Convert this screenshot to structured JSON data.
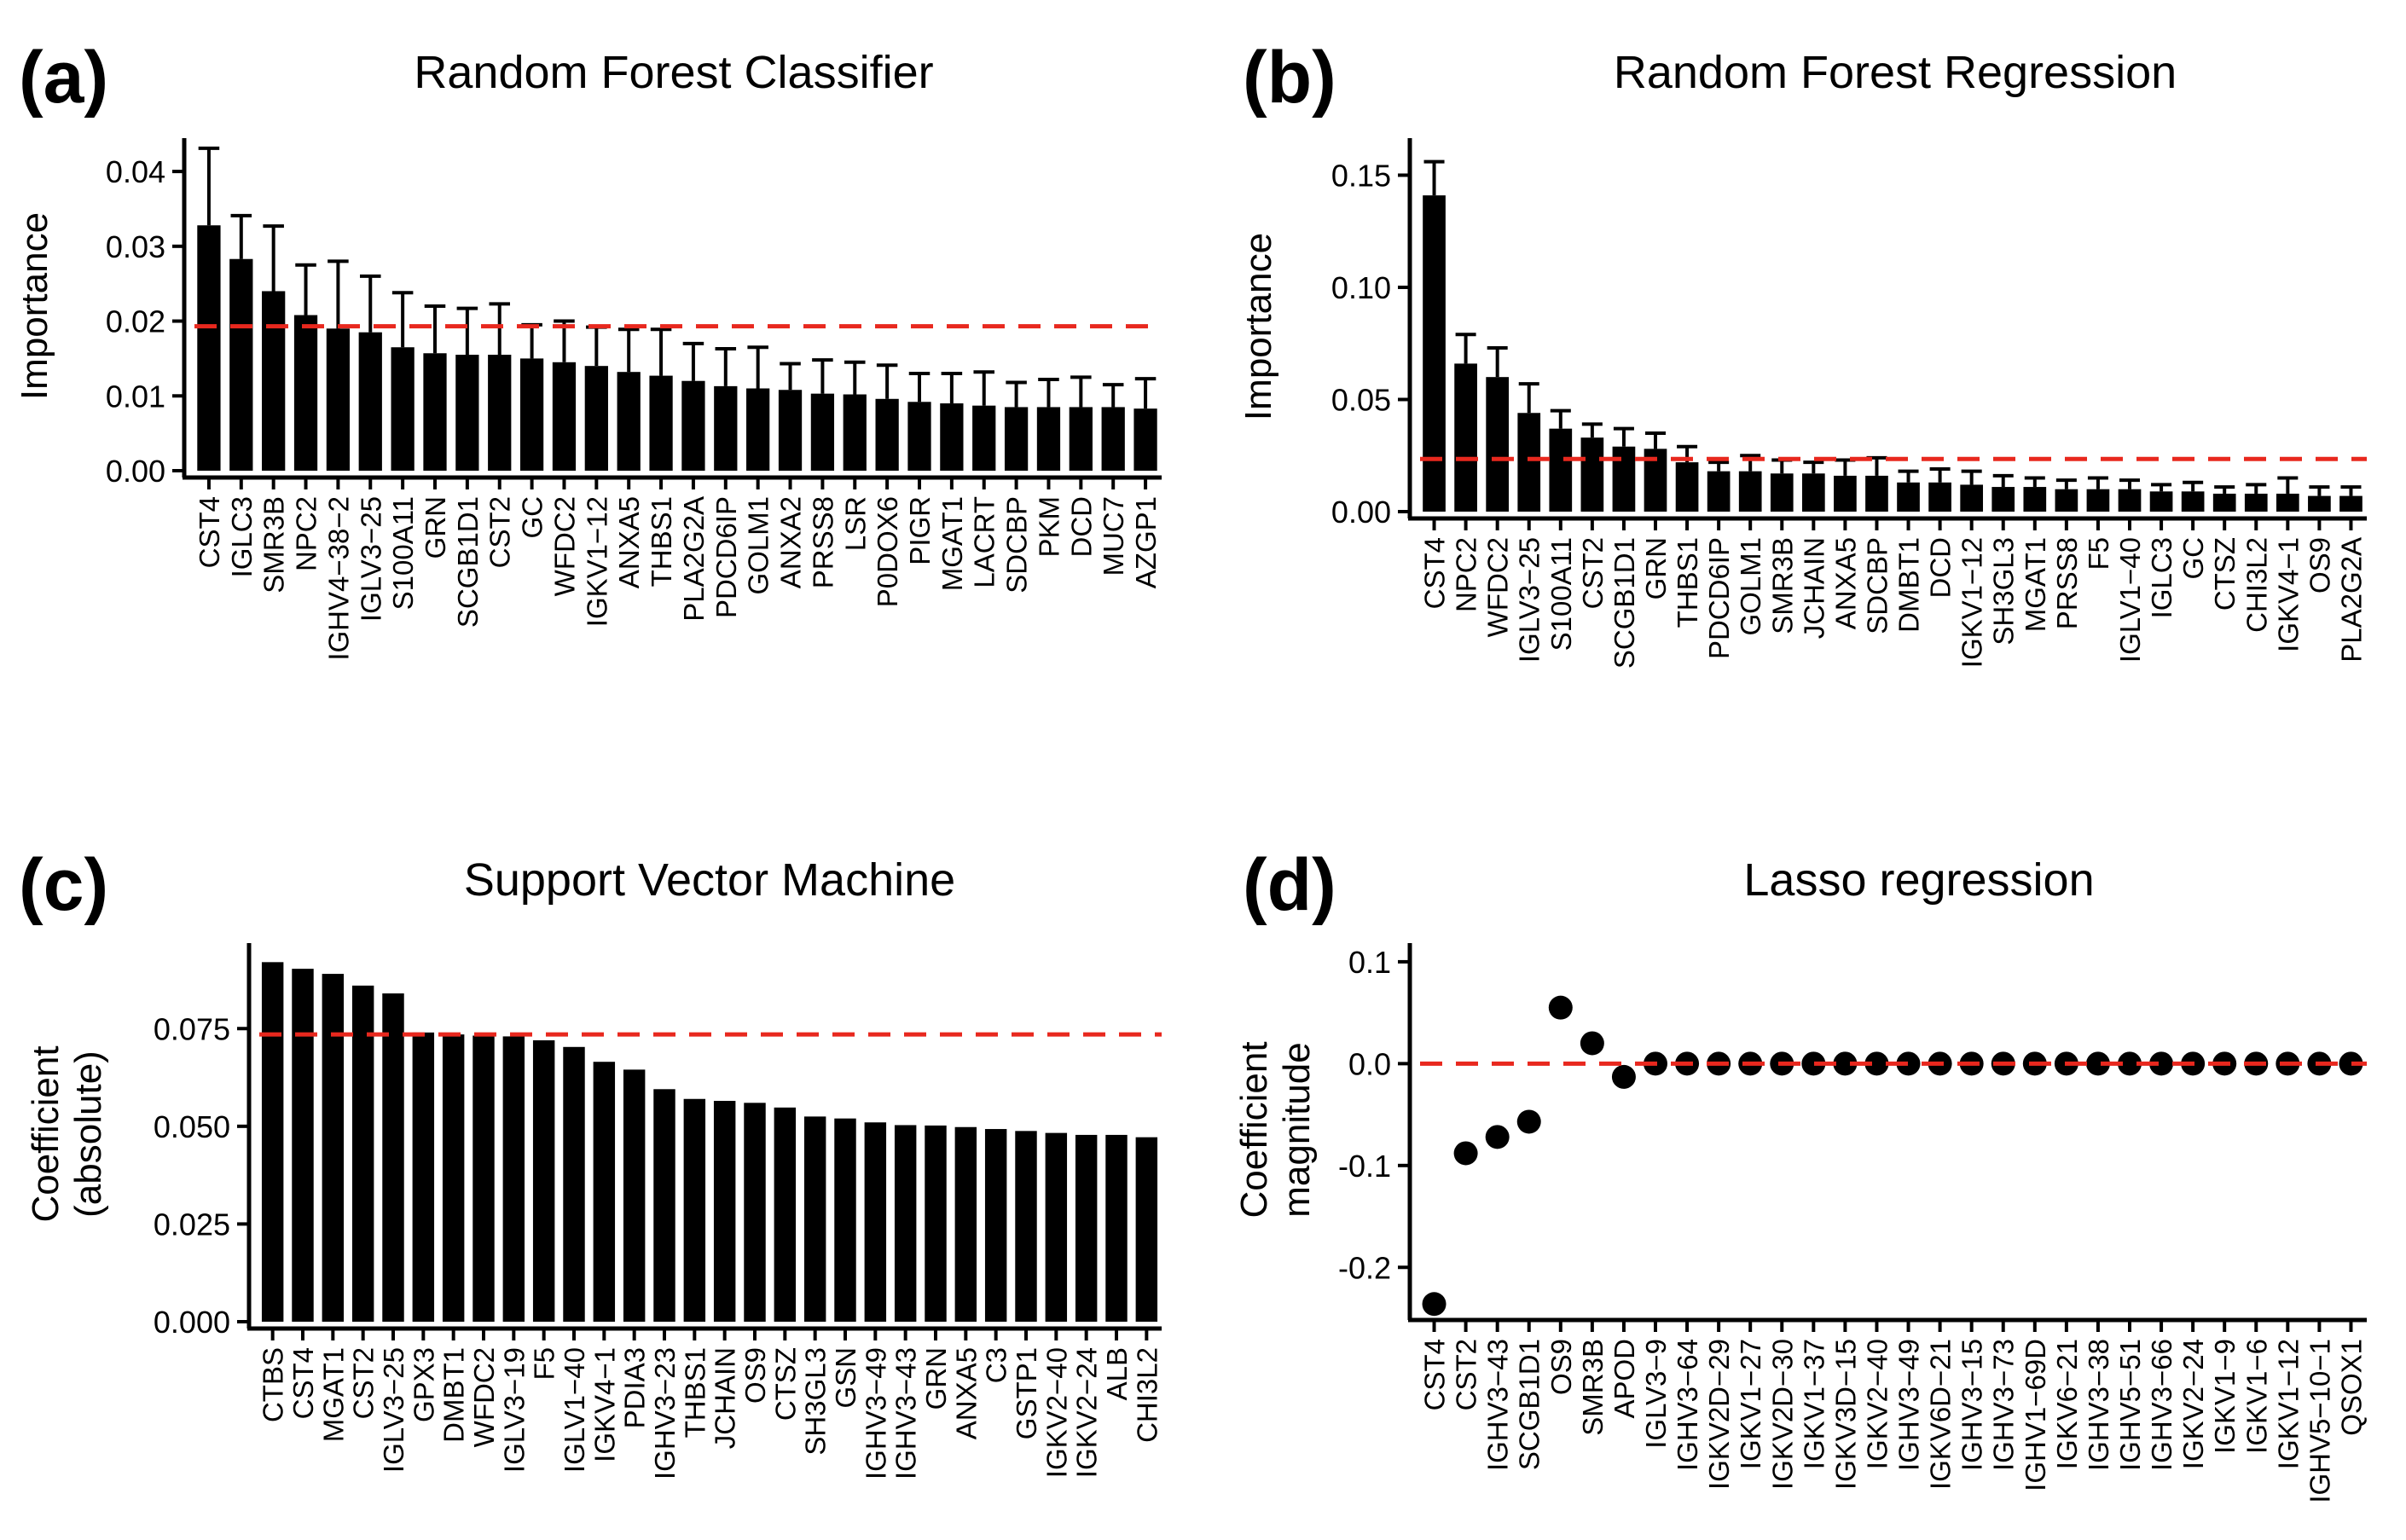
{
  "colors": {
    "bars": "#000000",
    "threshold": "#e8281e",
    "axis": "#000000",
    "background": "#ffffff"
  },
  "chart_data": [
    {
      "type": "bar",
      "panel_label": "(a)",
      "title": "Random Forest Classifier",
      "xlabel": "",
      "ylabel": "Importance",
      "ylim": [
        0,
        0.044
      ],
      "yticks": [
        0,
        0.01,
        0.02,
        0.03,
        0.04
      ],
      "ytick_labels": [
        "0.00",
        "0.01",
        "0.02",
        "0.03",
        "0.04"
      ],
      "threshold": 0.0193,
      "error_bars": true,
      "categories": [
        "CST4",
        "IGLC3",
        "SMR3B",
        "NPC2",
        "IGHV4−38−2",
        "IGLV3−25",
        "S100A11",
        "GRN",
        "SCGB1D1",
        "CST2",
        "GC",
        "WFDC2",
        "IGKV1−12",
        "ANXA5",
        "THBS1",
        "PLA2G2A",
        "PDCD6IP",
        "GOLM1",
        "ANXA2",
        "PRSS8",
        "LSR",
        "P0DOX6",
        "PIGR",
        "MGAT1",
        "LACRT",
        "SDCBP",
        "PKM",
        "DCD",
        "MUC7",
        "AZGP1"
      ],
      "values": [
        0.0328,
        0.0283,
        0.024,
        0.0208,
        0.019,
        0.0185,
        0.0165,
        0.0157,
        0.0155,
        0.0155,
        0.015,
        0.0145,
        0.014,
        0.0132,
        0.0127,
        0.012,
        0.0113,
        0.011,
        0.0108,
        0.0103,
        0.0102,
        0.0096,
        0.0092,
        0.009,
        0.0087,
        0.0085,
        0.0085,
        0.0085,
        0.0085,
        0.0083
      ],
      "errors": [
        0.0103,
        0.0058,
        0.0087,
        0.0067,
        0.009,
        0.0075,
        0.0073,
        0.0063,
        0.0062,
        0.0068,
        0.0045,
        0.0055,
        0.0052,
        0.0057,
        0.0062,
        0.005,
        0.005,
        0.0055,
        0.0035,
        0.0045,
        0.0043,
        0.0045,
        0.0038,
        0.004,
        0.0045,
        0.0033,
        0.0037,
        0.004,
        0.003,
        0.004
      ]
    },
    {
      "type": "bar",
      "panel_label": "(b)",
      "title": "Random Forest Regression",
      "xlabel": "",
      "ylabel": "Importance",
      "ylim": [
        0,
        0.165
      ],
      "yticks": [
        0,
        0.05,
        0.1,
        0.15
      ],
      "ytick_labels": [
        "0.00",
        "0.05",
        "0.10",
        "0.15"
      ],
      "threshold": 0.0235,
      "error_bars": true,
      "categories": [
        "CST4",
        "NPC2",
        "WFDC2",
        "IGLV3−25",
        "S100A11",
        "CST2",
        "SCGB1D1",
        "GRN",
        "THBS1",
        "PDCD6IP",
        "GOLM1",
        "SMR3B",
        "JCHAIN",
        "ANXA5",
        "SDCBP",
        "DMBT1",
        "DCD",
        "IGKV1−12",
        "SH3GL3",
        "MGAT1",
        "PRSS8",
        "F5",
        "IGLV1−40",
        "IGLC3",
        "GC",
        "CTSZ",
        "CHI3L2",
        "IGKV4−1",
        "OS9",
        "PLA2G2A"
      ],
      "values": [
        0.141,
        0.066,
        0.06,
        0.044,
        0.037,
        0.033,
        0.029,
        0.028,
        0.022,
        0.018,
        0.018,
        0.017,
        0.017,
        0.016,
        0.016,
        0.013,
        0.013,
        0.012,
        0.011,
        0.011,
        0.01,
        0.01,
        0.01,
        0.009,
        0.009,
        0.008,
        0.008,
        0.008,
        0.007,
        0.007
      ],
      "errors": [
        0.015,
        0.013,
        0.013,
        0.013,
        0.008,
        0.006,
        0.008,
        0.007,
        0.007,
        0.004,
        0.007,
        0.006,
        0.005,
        0.007,
        0.008,
        0.005,
        0.006,
        0.006,
        0.005,
        0.004,
        0.004,
        0.005,
        0.004,
        0.003,
        0.004,
        0.003,
        0.004,
        0.007,
        0.004,
        0.004
      ]
    },
    {
      "type": "bar",
      "panel_label": "(c)",
      "title": "Support Vector Machine",
      "xlabel": "",
      "ylabel": [
        "Coefficient",
        "(absolute)"
      ],
      "ylim": [
        0,
        0.096
      ],
      "yticks": [
        0,
        0.025,
        0.05,
        0.075
      ],
      "ytick_labels": [
        "0.000",
        "0.025",
        "0.050",
        "0.075"
      ],
      "threshold": 0.0735,
      "error_bars": false,
      "categories": [
        "CTBS",
        "CST4",
        "MGAT1",
        "CST2",
        "IGLV3−25",
        "GPX3",
        "DMBT1",
        "WFDC2",
        "IGLV3−19",
        "F5",
        "IGLV1−40",
        "IGKV4−1",
        "PDIA3",
        "IGHV3−23",
        "THBS1",
        "JCHAIN",
        "OS9",
        "CTSZ",
        "SH3GL3",
        "GSN",
        "IGHV3−49",
        "IGHV3−43",
        "GRN",
        "ANXA5",
        "C3",
        "GSTP1",
        "IGKV2−40",
        "IGKV2−24",
        "ALB",
        "CHI3L2"
      ],
      "values": [
        0.092,
        0.0903,
        0.089,
        0.086,
        0.084,
        0.074,
        0.0735,
        0.0732,
        0.073,
        0.072,
        0.0703,
        0.0665,
        0.0645,
        0.0595,
        0.057,
        0.0565,
        0.056,
        0.0548,
        0.0525,
        0.052,
        0.051,
        0.0503,
        0.0502,
        0.0498,
        0.0493,
        0.0488,
        0.0483,
        0.0478,
        0.0478,
        0.0472
      ]
    },
    {
      "type": "scatter",
      "panel_label": "(d)",
      "title": "Lasso regression",
      "xlabel": "",
      "ylabel": [
        "Coefficient",
        "magnitude"
      ],
      "ylim": [
        -0.245,
        0.115
      ],
      "yticks": [
        -0.2,
        -0.1,
        0,
        0.1
      ],
      "ytick_labels": [
        "-0.2",
        "-0.1",
        "0.0",
        "0.1"
      ],
      "threshold": 0,
      "categories": [
        "CST4",
        "CST2",
        "IGHV3−43",
        "SCGB1D1",
        "OS9",
        "SMR3B",
        "APOD",
        "IGLV3−9",
        "IGHV3−64",
        "IGKV2D−29",
        "IGKV1−27",
        "IGKV2D−30",
        "IGKV1−37",
        "IGKV3D−15",
        "IGKV2−40",
        "IGHV3−49",
        "IGKV6D−21",
        "IGHV3−15",
        "IGHV3−73",
        "IGHV1−69D",
        "IGKV6−21",
        "IGHV3−38",
        "IGHV5−51",
        "IGHV3−66",
        "IGKV2−24",
        "IGKV1−9",
        "IGKV1−6",
        "IGKV1−12",
        "IGHV5−10−1",
        "QSOX1"
      ],
      "values": [
        -0.236,
        -0.088,
        -0.072,
        -0.057,
        0.055,
        0.02,
        -0.013,
        0,
        0,
        0,
        0,
        0,
        0,
        0,
        0,
        0,
        0,
        0,
        0,
        0,
        0,
        0,
        0,
        0,
        0,
        0,
        0,
        0,
        0,
        0
      ]
    }
  ]
}
